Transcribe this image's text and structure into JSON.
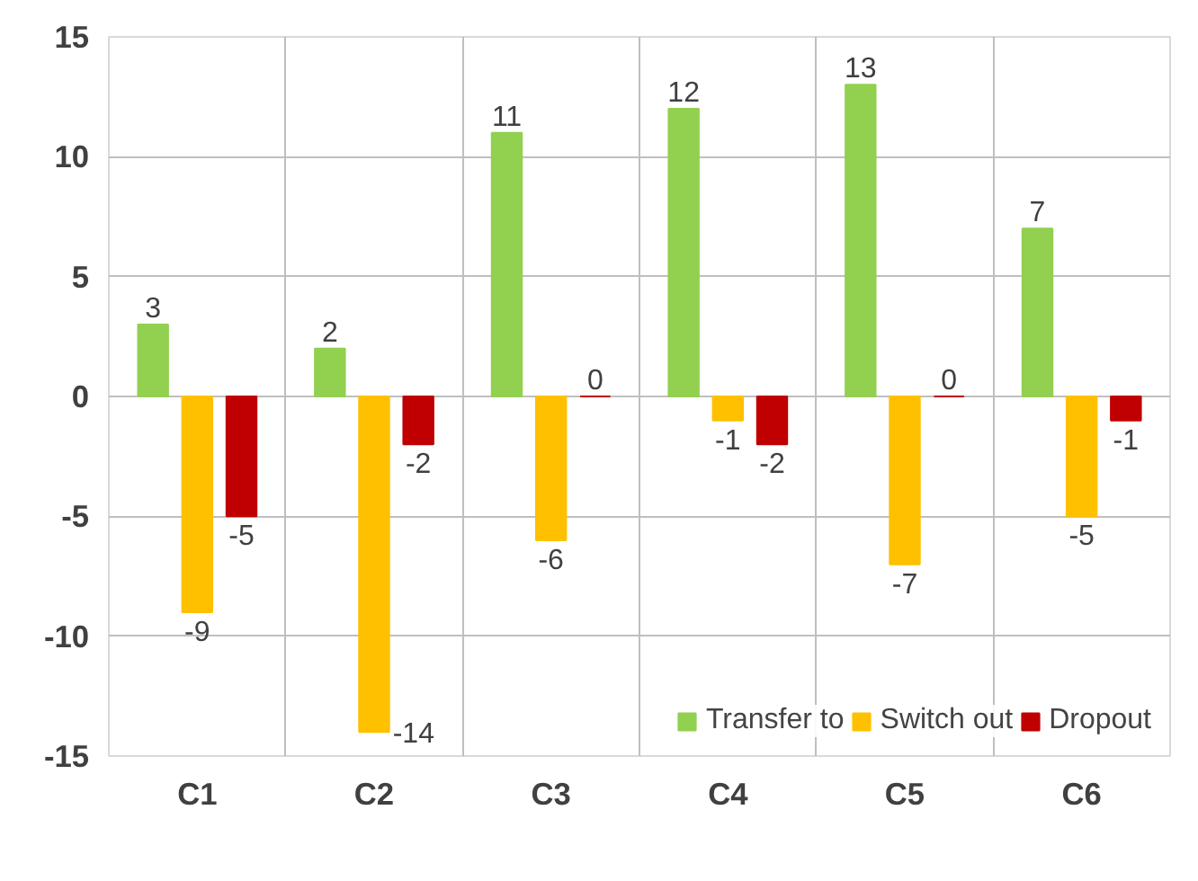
{
  "chart_data": {
    "type": "bar",
    "categories": [
      "C1",
      "C2",
      "C3",
      "C4",
      "C5",
      "C6"
    ],
    "series": [
      {
        "name": "Transfer to",
        "color": "#92d050",
        "values": [
          3,
          2,
          11,
          12,
          13,
          7
        ]
      },
      {
        "name": "Switch out",
        "color": "#ffc000",
        "values": [
          -9,
          -14,
          -6,
          -1,
          -7,
          -5
        ]
      },
      {
        "name": "Dropout",
        "color": "#c00000",
        "values": [
          -5,
          -2,
          0,
          -2,
          0,
          -1
        ]
      }
    ],
    "ylim": [
      -15,
      15
    ],
    "yticks": [
      -15,
      -10,
      -5,
      0,
      5,
      10,
      15
    ],
    "grid": true,
    "legend": "bottom right",
    "data_labels": true
  }
}
